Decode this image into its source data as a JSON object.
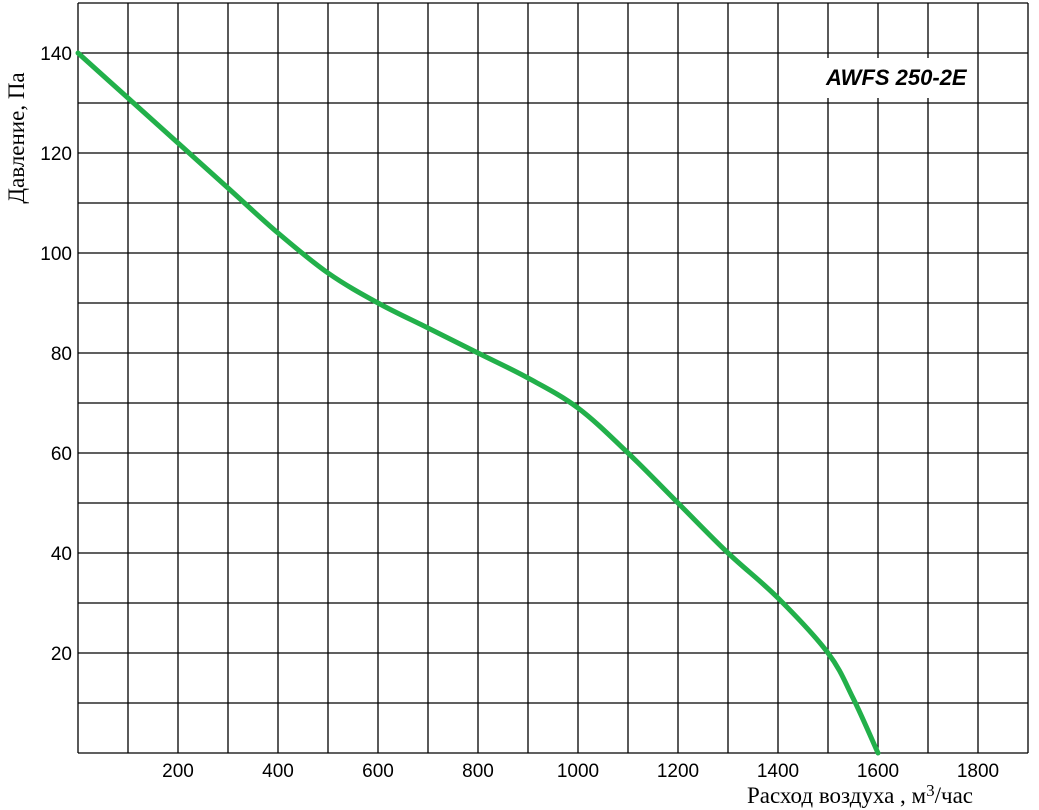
{
  "chart_data": {
    "type": "line",
    "title": "AWFS 250-2E",
    "xlabel": "Расход воздуха , м3/час",
    "ylabel": "Давление, Па",
    "xlim": [
      0,
      1900
    ],
    "ylim": [
      0,
      150
    ],
    "x_major_ticks": [
      200,
      400,
      600,
      800,
      1000,
      1200,
      1400,
      1600,
      1800
    ],
    "x_grid_step": 100,
    "y_major_ticks": [
      20,
      40,
      60,
      80,
      100,
      120,
      140
    ],
    "y_grid_step": 10,
    "grid": true,
    "legend": "none",
    "series": [
      {
        "color": "#22b04a",
        "x": [
          0,
          100,
          200,
          300,
          400,
          500,
          600,
          700,
          800,
          900,
          1000,
          1100,
          1200,
          1300,
          1400,
          1500,
          1550,
          1600
        ],
        "values": [
          140,
          131,
          122,
          113,
          104,
          96,
          90,
          85,
          80,
          75,
          69,
          60,
          50,
          40,
          31,
          20,
          11,
          0
        ]
      }
    ]
  },
  "labels": {
    "badge": "AWFS 250-2E",
    "y_title": "Давление, Па",
    "x_title_main": "Расход воздуха , м",
    "x_title_sup": "3",
    "x_title_tail": "/час"
  }
}
